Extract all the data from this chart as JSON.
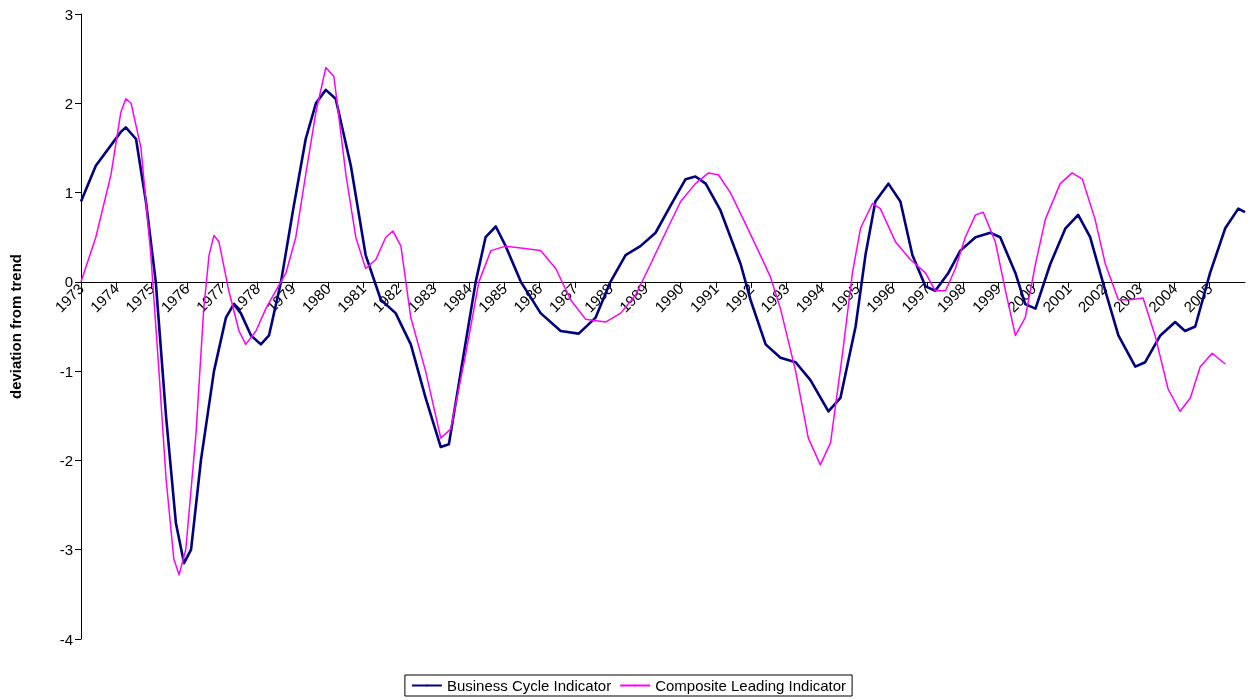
{
  "chart_data": {
    "type": "line",
    "ylabel": "deviation from trend",
    "xlim": [
      1973,
      2006
    ],
    "xticks": [
      1973,
      1974,
      1975,
      1976,
      1977,
      1978,
      1979,
      1980,
      1981,
      1982,
      1983,
      1984,
      1985,
      1986,
      1987,
      1988,
      1989,
      1990,
      1991,
      1992,
      1993,
      1994,
      1995,
      1996,
      1997,
      1998,
      1999,
      2000,
      2001,
      2002,
      2003,
      2004,
      2005
    ],
    "ylim": [
      -4,
      3
    ],
    "yticks": [
      -4,
      -3,
      -2,
      -1,
      0,
      1,
      2,
      3
    ],
    "grid": false,
    "legend": "bottom",
    "marker": "none",
    "line_style": "solid",
    "series": [
      {
        "name": "Business Cycle Indicator",
        "color": "#000080",
        "x": [
          1973.0,
          1973.42,
          1974.13,
          1974.27,
          1974.56,
          1974.84,
          1975.12,
          1975.41,
          1975.69,
          1975.92,
          1976.12,
          1976.4,
          1976.77,
          1977.11,
          1977.33,
          1977.53,
          1977.82,
          1978.1,
          1978.33,
          1978.67,
          1979.01,
          1979.37,
          1979.66,
          1979.94,
          1980.22,
          1980.65,
          1981.07,
          1981.5,
          1981.92,
          1982.35,
          1982.77,
          1983.2,
          1983.43,
          1983.77,
          1984.19,
          1984.47,
          1984.76,
          1985.04,
          1985.47,
          1986.03,
          1986.6,
          1987.11,
          1987.59,
          1988.01,
          1988.44,
          1988.86,
          1989.29,
          1989.71,
          1990.14,
          1990.42,
          1990.71,
          1991.13,
          1991.7,
          1991.98,
          1992.41,
          1992.83,
          1993.26,
          1993.68,
          1994.19,
          1994.53,
          1994.96,
          1995.24,
          1995.52,
          1995.89,
          1996.23,
          1996.57,
          1996.94,
          1997.22,
          1997.59,
          1997.93,
          1998.36,
          1998.78,
          1999.06,
          1999.49,
          1999.77,
          2000.06,
          2000.48,
          2000.91,
          2001.27,
          2001.61,
          2002.04,
          2002.41,
          2002.89,
          2003.17,
          2003.6,
          2004.02,
          2004.3,
          2004.59,
          2005.01,
          2005.44,
          2005.81,
          2006.0
        ],
        "values": [
          0.9,
          1.3,
          1.68,
          1.73,
          1.6,
          0.9,
          0,
          -1.5,
          -2.7,
          -3.15,
          -3.0,
          -2.0,
          -1.0,
          -0.4,
          -0.25,
          -0.35,
          -0.6,
          -0.7,
          -0.6,
          0,
          0.8,
          1.6,
          2.0,
          2.15,
          2.05,
          1.3,
          0.3,
          -0.2,
          -0.35,
          -0.7,
          -1.3,
          -1.85,
          -1.82,
          -1.0,
          0,
          0.5,
          0.62,
          0.4,
          0,
          -0.35,
          -0.55,
          -0.58,
          -0.4,
          0,
          0.3,
          0.4,
          0.55,
          0.85,
          1.15,
          1.18,
          1.1,
          0.8,
          0.2,
          -0.2,
          -0.7,
          -0.85,
          -0.9,
          -1.1,
          -1.45,
          -1.3,
          -0.5,
          0.3,
          0.9,
          1.1,
          0.9,
          0.3,
          -0.05,
          -0.1,
          0.1,
          0.35,
          0.5,
          0.55,
          0.5,
          0.1,
          -0.25,
          -0.3,
          0.2,
          0.6,
          0.75,
          0.5,
          -0.1,
          -0.6,
          -0.95,
          -0.9,
          -0.6,
          -0.45,
          -0.55,
          -0.5,
          0.1,
          0.6,
          0.82,
          0.78
        ]
      },
      {
        "name": "Composite Leading Indicator",
        "color": "#ff00ff",
        "x": [
          1973.0,
          1973.42,
          1973.85,
          1974.13,
          1974.27,
          1974.42,
          1974.7,
          1974.98,
          1975.21,
          1975.41,
          1975.63,
          1975.78,
          1975.97,
          1976.26,
          1976.48,
          1976.63,
          1976.77,
          1976.91,
          1977.19,
          1977.48,
          1977.67,
          1977.96,
          1978.24,
          1978.52,
          1978.81,
          1979.09,
          1979.37,
          1979.66,
          1979.94,
          1980.17,
          1980.51,
          1980.79,
          1981.07,
          1981.36,
          1981.64,
          1981.84,
          1982.07,
          1982.35,
          1982.77,
          1983.2,
          1983.48,
          1983.91,
          1984.28,
          1984.62,
          1985.04,
          1985.47,
          1986.03,
          1986.46,
          1986.88,
          1987.31,
          1987.87,
          1988.3,
          1988.72,
          1989.15,
          1989.57,
          1990.0,
          1990.42,
          1990.79,
          1991.07,
          1991.41,
          1991.84,
          1992.26,
          1992.55,
          1992.83,
          1993.26,
          1993.62,
          1993.96,
          1994.25,
          1994.59,
          1994.87,
          1995.1,
          1995.44,
          1995.66,
          1996.09,
          1996.51,
          1996.94,
          1997.22,
          1997.51,
          1997.79,
          1998.07,
          1998.36,
          1998.58,
          1998.92,
          1999.21,
          1999.49,
          1999.77,
          2000.06,
          2000.34,
          2000.76,
          2001.1,
          2001.39,
          2001.75,
          2002.04,
          2002.41,
          2002.75,
          2003.11,
          2003.45,
          2003.82,
          2004.16,
          2004.45,
          2004.73,
          2005.07,
          2005.44
        ],
        "values": [
          0,
          0.5,
          1.2,
          1.9,
          2.05,
          2.0,
          1.5,
          0.3,
          -1.0,
          -2.2,
          -3.1,
          -3.28,
          -3.0,
          -1.7,
          -0.3,
          0.3,
          0.52,
          0.45,
          -0.1,
          -0.55,
          -0.7,
          -0.55,
          -0.3,
          -0.1,
          0.1,
          0.5,
          1.2,
          1.9,
          2.4,
          2.3,
          1.2,
          0.5,
          0.15,
          0.25,
          0.5,
          0.57,
          0.4,
          -0.4,
          -1.0,
          -1.75,
          -1.65,
          -0.8,
          0,
          0.35,
          0.4,
          0.38,
          0.35,
          0.15,
          -0.2,
          -0.42,
          -0.45,
          -0.35,
          -0.15,
          0.2,
          0.55,
          0.9,
          1.1,
          1.22,
          1.2,
          1.0,
          0.65,
          0.3,
          0.05,
          -0.3,
          -1.0,
          -1.75,
          -2.05,
          -1.8,
          -0.8,
          0.1,
          0.6,
          0.88,
          0.82,
          0.45,
          0.25,
          0.1,
          -0.1,
          -0.1,
          0.15,
          0.5,
          0.75,
          0.78,
          0.45,
          -0.1,
          -0.6,
          -0.4,
          0.2,
          0.7,
          1.1,
          1.22,
          1.15,
          0.7,
          0.2,
          -0.2,
          -0.2,
          -0.18,
          -0.6,
          -1.2,
          -1.45,
          -1.3,
          -0.95,
          -0.8,
          -0.92
        ]
      }
    ]
  }
}
